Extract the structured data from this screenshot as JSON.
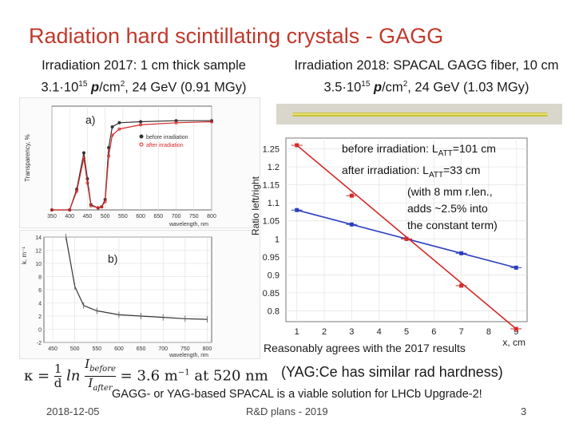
{
  "slide": {
    "title": "Radiation hard scintillating crystals - GAGG",
    "left_heading": {
      "line1": "Irradiation 2017: 1 cm thick sample",
      "line2_pre": "3.1·10",
      "line2_exp": "15",
      "line2_p": " p",
      "line2_unit": "/cm",
      "line2_unit_exp": "2",
      "line2_post": ", 24 GeV (0.91 MGy)"
    },
    "right_heading": {
      "line1": "Irradiation 2018: SPACAL GAGG fiber, 10 cm",
      "line2_pre": "3.5·10",
      "line2_exp": "15",
      "line2_p": " p",
      "line2_unit": "/cm",
      "line2_unit_exp": "2",
      "line2_post": ", 24 GeV (1.03 MGy)"
    },
    "legend": {
      "before_pre": "before irradiation: L",
      "before_sub": "ATT",
      "before_post": "=101 cm",
      "after_pre": "after irradiation: L",
      "after_sub": "ATT",
      "after_post": "=33 cm",
      "note1": "(with 8 mm r.len.,",
      "note2": "adds ~2.5% into",
      "note3": "the constant term)"
    },
    "agreement": "Reasonably agrees with the 2017 results",
    "formula": {
      "lhs": "κ = ",
      "frac_num": "1",
      "frac_den": "d",
      "ln": "ln",
      "ratio_num": "I",
      "ratio_num_sub": "before",
      "ratio_den": "I",
      "ratio_den_sub": "after",
      "rhs": "= 3.6 m",
      "rhs_exp": "−1",
      "rhs_post": " at 520 nm"
    },
    "yag_note": "(YAG:Ce has similar rad hardness)",
    "conclusion": "GAGG- or YAG-based SPACAL is a viable solution for LHCb Upgrade-2!",
    "footer": {
      "date": "2018-12-05",
      "center": "R&D plans - 2019",
      "page": "3"
    },
    "colors": {
      "title": "#c0392b",
      "before": "#2b3fbf",
      "after": "#d42a2a"
    }
  },
  "chart_data": [
    {
      "type": "line",
      "panel": "a)",
      "ylabel": "Transparency, %",
      "xlabel": "wavelength, nm",
      "x_ticks": [
        "350",
        "400",
        "450",
        "500",
        "550",
        "600",
        "650",
        "700",
        "750",
        "800"
      ],
      "legend": [
        "before irradiation",
        "after irradiation"
      ],
      "series": [
        {
          "name": "before irradiation",
          "x": [
            350,
            400,
            420,
            440,
            450,
            460,
            480,
            490,
            500,
            510,
            520,
            540,
            600,
            700,
            800
          ],
          "values": [
            0,
            0,
            20,
            55,
            30,
            5,
            2,
            3,
            10,
            60,
            80,
            84,
            85,
            86,
            86
          ]
        },
        {
          "name": "after irradiation",
          "x": [
            350,
            400,
            420,
            440,
            450,
            460,
            480,
            490,
            500,
            510,
            520,
            540,
            600,
            700,
            800
          ],
          "values": [
            0,
            0,
            18,
            50,
            26,
            4,
            2,
            3,
            8,
            52,
            72,
            78,
            82,
            84,
            85
          ]
        }
      ]
    },
    {
      "type": "line",
      "panel": "b)",
      "ylabel": "k, m⁻¹",
      "xlabel": "wavelength, nm",
      "y_ticks": [
        "-2",
        "0",
        "2",
        "4",
        "6",
        "8",
        "10",
        "12",
        "14"
      ],
      "x_ticks": [
        "450",
        "500",
        "550",
        "600",
        "650",
        "700",
        "750",
        "800"
      ],
      "ylim": [
        -2,
        14
      ],
      "series": [
        {
          "name": "k",
          "x": [
            480,
            500,
            520,
            550,
            600,
            650,
            700,
            750,
            800
          ],
          "values": [
            14,
            6.5,
            3.6,
            2.8,
            2.2,
            2.0,
            1.8,
            1.6,
            1.5
          ]
        }
      ]
    },
    {
      "type": "line",
      "ylabel": "Ratio left/right",
      "xlabel": "x, cm",
      "y_ticks": [
        "0.8",
        "0.85",
        "0.9",
        "0.95",
        "1",
        "1.05",
        "1.1",
        "1.15",
        "1.2",
        "1.25"
      ],
      "x_ticks": [
        "1",
        "2",
        "3",
        "4",
        "5",
        "6",
        "7",
        "8",
        "9"
      ],
      "ylim": [
        0.77,
        1.28
      ],
      "xlim": [
        0.6,
        9.4
      ],
      "series": [
        {
          "name": "before irradiation",
          "x": [
            1,
            3,
            5,
            7,
            9
          ],
          "values": [
            1.08,
            1.04,
            1.0,
            0.96,
            0.92
          ]
        },
        {
          "name": "after irradiation",
          "x": [
            1,
            3,
            5,
            7,
            9
          ],
          "values": [
            1.26,
            1.12,
            1.0,
            0.87,
            0.75
          ]
        }
      ]
    }
  ]
}
